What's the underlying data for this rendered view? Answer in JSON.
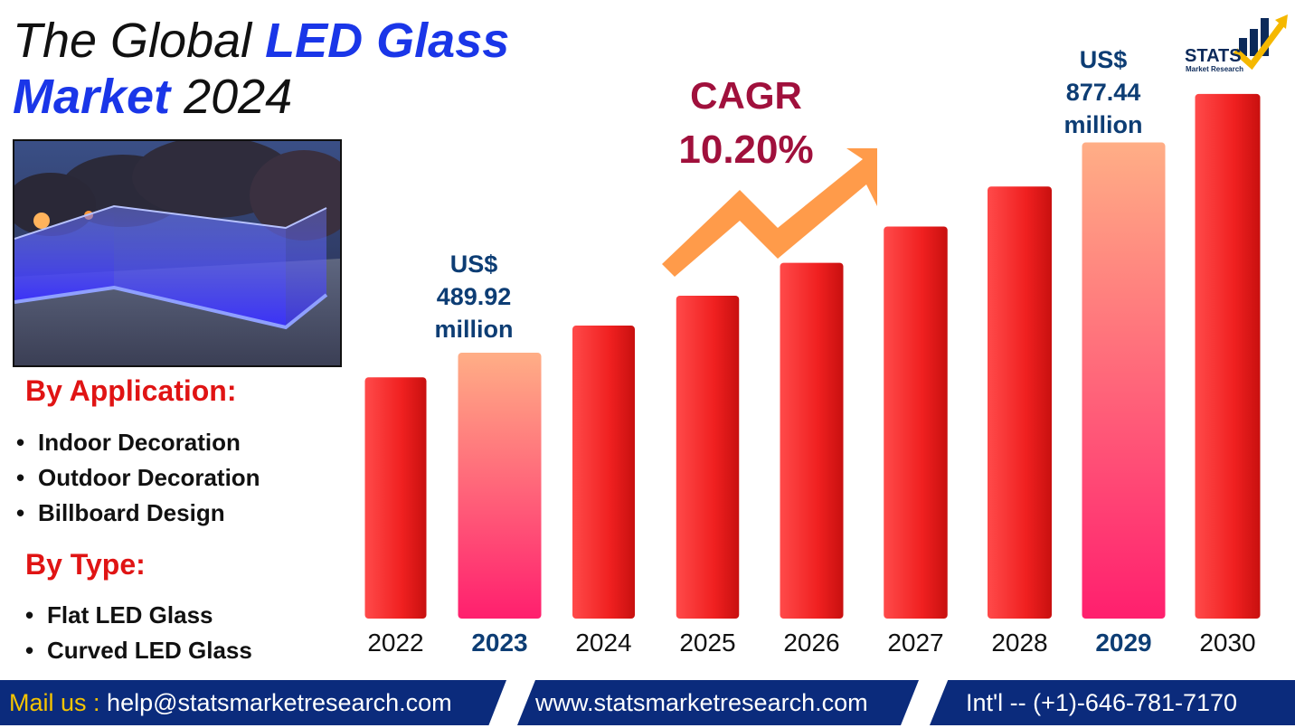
{
  "title": {
    "part1": "The Global ",
    "part2": "LED Glass",
    "part3": "Market",
    "part4": " 2024"
  },
  "logo": {
    "name": "STATS",
    "sub": "Market Research"
  },
  "application": {
    "heading": "By Application:",
    "items": [
      "Indoor Decoration",
      "Outdoor Decoration",
      "Billboard Design"
    ]
  },
  "type": {
    "heading": "By Type:",
    "items": [
      "Flat LED Glass",
      "Curved LED Glass"
    ]
  },
  "cagr": {
    "label": "CAGR",
    "value": "10.20%"
  },
  "callouts": {
    "y2023": {
      "line1": "US$",
      "line2": "489.92",
      "line3": "million"
    },
    "y2029": {
      "line1": "US$",
      "line2": "877.44",
      "line3": "million"
    }
  },
  "chart_data": {
    "type": "bar",
    "categories": [
      "2022",
      "2023",
      "2024",
      "2025",
      "2026",
      "2027",
      "2028",
      "2029",
      "2030"
    ],
    "values": [
      444.6,
      489.92,
      539.9,
      595.0,
      655.7,
      722.6,
      796.3,
      877.44,
      966.9
    ],
    "highlight": [
      "2023",
      "2029"
    ],
    "ylim": [
      0,
      1000
    ],
    "colors": {
      "bar": "#e8191d",
      "bar_light": "#ff5050",
      "highlight_top": "#ffae86",
      "highlight_bottom": "#ff1f6e",
      "arrow": "#ff9b4a",
      "highlight_label": "#0d3d74"
    }
  },
  "footer": {
    "mail_label": "Mail us :",
    "mail": "help@statsmarketresearch.com",
    "web": "www.statsmarketresearch.com",
    "phone": "Int'l -- (+1)-646-781-7170"
  }
}
